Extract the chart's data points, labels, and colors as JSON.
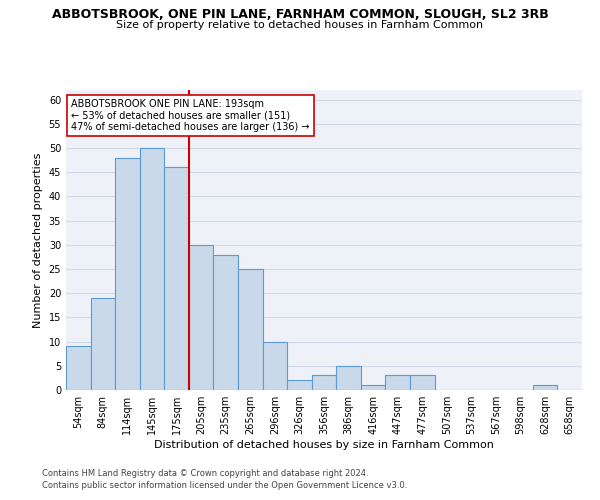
{
  "title_line1": "ABBOTSBROOK, ONE PIN LANE, FARNHAM COMMON, SLOUGH, SL2 3RB",
  "title_line2": "Size of property relative to detached houses in Farnham Common",
  "xlabel": "Distribution of detached houses by size in Farnham Common",
  "ylabel": "Number of detached properties",
  "categories": [
    "54sqm",
    "84sqm",
    "114sqm",
    "145sqm",
    "175sqm",
    "205sqm",
    "235sqm",
    "265sqm",
    "296sqm",
    "326sqm",
    "356sqm",
    "386sqm",
    "416sqm",
    "447sqm",
    "477sqm",
    "507sqm",
    "537sqm",
    "567sqm",
    "598sqm",
    "628sqm",
    "658sqm"
  ],
  "values": [
    9,
    19,
    48,
    50,
    46,
    30,
    28,
    25,
    10,
    2,
    3,
    5,
    1,
    3,
    3,
    0,
    0,
    0,
    0,
    1,
    0
  ],
  "bar_color": "#c9d9ea",
  "bar_edge_color": "#5b9bd5",
  "vline_x": 4.5,
  "vline_color": "#cc0000",
  "annotation_text": "ABBOTSBROOK ONE PIN LANE: 193sqm\n← 53% of detached houses are smaller (151)\n47% of semi-detached houses are larger (136) →",
  "annotation_box_color": "white",
  "annotation_box_edge": "#cc0000",
  "ylim": [
    0,
    62
  ],
  "yticks": [
    0,
    5,
    10,
    15,
    20,
    25,
    30,
    35,
    40,
    45,
    50,
    55,
    60
  ],
  "grid_color": "#d0d8e8",
  "bg_color": "#eef2f8",
  "footer_line1": "Contains HM Land Registry data © Crown copyright and database right 2024.",
  "footer_line2": "Contains public sector information licensed under the Open Government Licence v3.0.",
  "title_fontsize": 9,
  "subtitle_fontsize": 8,
  "axis_label_fontsize": 8,
  "ylabel_fontsize": 8,
  "tick_fontsize": 7,
  "annotation_fontsize": 7,
  "footer_fontsize": 6
}
